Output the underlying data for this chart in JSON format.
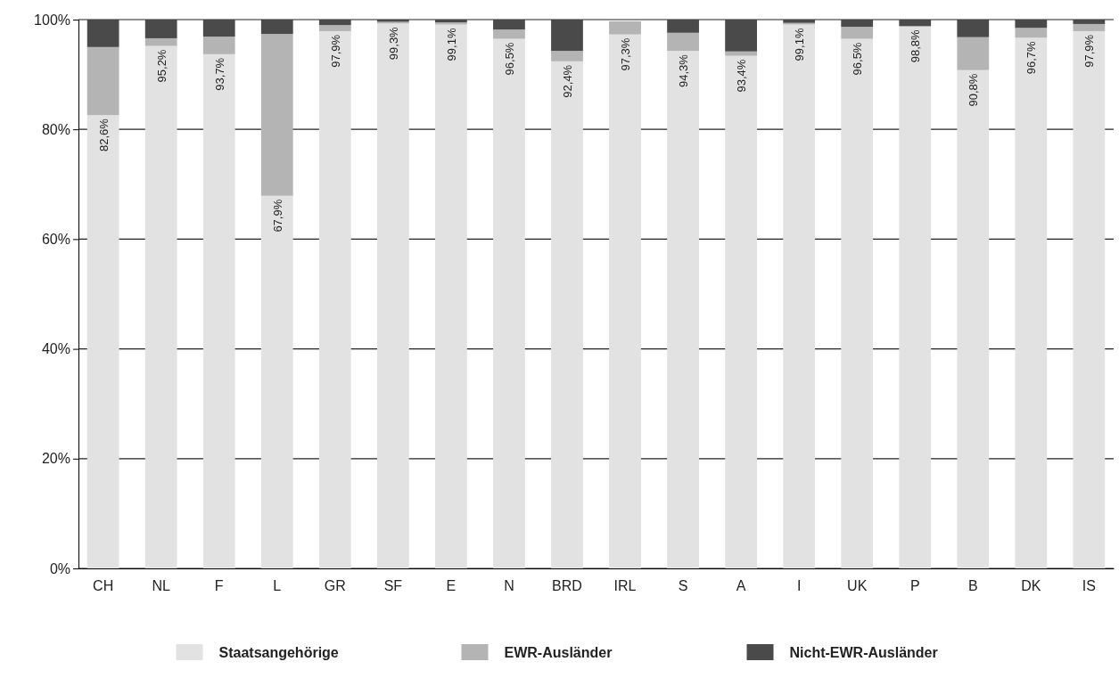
{
  "chart_data": {
    "type": "bar",
    "stacked": true,
    "categories": [
      "CH",
      "NL",
      "F",
      "L",
      "GR",
      "SF",
      "E",
      "N",
      "BRD",
      "IRL",
      "S",
      "A",
      "I",
      "UK",
      "P",
      "B",
      "DK",
      "IS"
    ],
    "series": [
      {
        "name": "Staatsangehörige",
        "color": "#e2e2e2",
        "values": [
          82.6,
          95.2,
          93.7,
          67.9,
          97.9,
          99.3,
          99.1,
          96.5,
          92.4,
          97.3,
          94.3,
          93.4,
          99.1,
          96.5,
          98.8,
          90.8,
          96.7,
          97.9
        ],
        "value_labels": [
          "82,6%",
          "95,2%",
          "93,7%",
          "67,9%",
          "97,9%",
          "99,3%",
          "99,1%",
          "96,5%",
          "92,4%",
          "97,3%",
          "94,3%",
          "93,4%",
          "99,1%",
          "96,5%",
          "98,8%",
          "90,8%",
          "96,7%",
          "97,9%"
        ]
      },
      {
        "name": "EWR-Ausländer",
        "color": "#b4b4b4",
        "values": [
          12.4,
          1.4,
          3.2,
          29.5,
          1.1,
          0.3,
          0.4,
          1.7,
          1.9,
          2.4,
          3.3,
          0.8,
          0.3,
          2.2,
          0,
          6.0,
          1.8,
          1.3
        ]
      },
      {
        "name": "Nicht-EWR-Ausländer",
        "color": "#4a4a4a",
        "values": [
          5.0,
          3.4,
          3.1,
          2.6,
          1.0,
          0.4,
          0.5,
          1.8,
          5.7,
          null,
          2.4,
          5.8,
          0.6,
          1.3,
          1.2,
          3.2,
          1.5,
          0.8
        ]
      }
    ],
    "ylim": [
      0,
      100
    ],
    "yticks": [
      {
        "value": 0,
        "label": "0%"
      },
      {
        "value": 20,
        "label": "20%"
      },
      {
        "value": 40,
        "label": "40%"
      },
      {
        "value": 60,
        "label": "60%"
      },
      {
        "value": 80,
        "label": "80%"
      },
      {
        "value": 100,
        "label": "100%"
      }
    ],
    "grid": "y",
    "legend": "bottom"
  }
}
